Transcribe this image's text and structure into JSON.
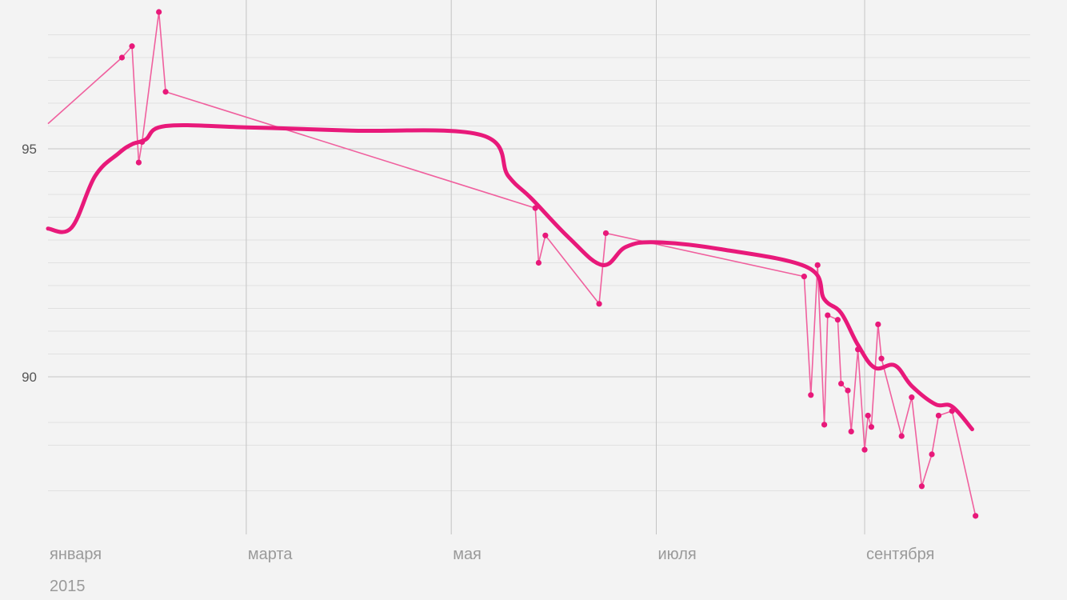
{
  "chart_data": {
    "type": "line",
    "x_axis": {
      "kind": "date",
      "range": [
        "2015-01-01",
        "2015-10-07"
      ],
      "ticks": [
        {
          "date": "2015-01-01",
          "label": "января"
        },
        {
          "date": "2015-03-01",
          "label": "марта"
        },
        {
          "date": "2015-05-01",
          "label": "мая"
        },
        {
          "date": "2015-07-01",
          "label": "июля"
        },
        {
          "date": "2015-09-01",
          "label": "сентября"
        }
      ],
      "year_label": "2015"
    },
    "y_axis": {
      "range": [
        87,
        98.3
      ],
      "labeled_ticks": [
        90,
        95
      ],
      "minor_gridlines": [
        87.5,
        88.5,
        89,
        90.5,
        91,
        91.5,
        92,
        92.5,
        93,
        93.5,
        94,
        94.5,
        95.5,
        96,
        96.5,
        97,
        97.5
      ]
    },
    "grid": true,
    "colors": {
      "series": "#e8197a",
      "raw_line": "#f0609e",
      "grid_major": "#c4c4c4",
      "grid_minor": "#e0e0e0",
      "background": "#f3f3f3"
    },
    "series": [
      {
        "kind": "raw",
        "points": [
          [
            "2015-01-01",
            95.55
          ],
          [
            "2015-01-23",
            97.0
          ],
          [
            "2015-01-26",
            97.25
          ],
          [
            "2015-01-28",
            94.7
          ],
          [
            "2015-01-29",
            95.15
          ],
          [
            "2015-02-03",
            98.0
          ],
          [
            "2015-02-05",
            96.25
          ],
          [
            "2015-05-26",
            93.7
          ],
          [
            "2015-05-27",
            92.5
          ],
          [
            "2015-05-29",
            93.1
          ],
          [
            "2015-06-14",
            91.6
          ],
          [
            "2015-06-16",
            93.15
          ],
          [
            "2015-08-14",
            92.2
          ],
          [
            "2015-08-16",
            89.6
          ],
          [
            "2015-08-18",
            92.45
          ],
          [
            "2015-08-20",
            88.95
          ],
          [
            "2015-08-21",
            91.35
          ],
          [
            "2015-08-24",
            91.25
          ],
          [
            "2015-08-25",
            89.85
          ],
          [
            "2015-08-27",
            89.7
          ],
          [
            "2015-08-28",
            88.8
          ],
          [
            "2015-08-30",
            90.6
          ],
          [
            "2015-09-01",
            88.4
          ],
          [
            "2015-09-02",
            89.15
          ],
          [
            "2015-09-03",
            88.9
          ],
          [
            "2015-09-05",
            91.15
          ],
          [
            "2015-09-06",
            90.4
          ],
          [
            "2015-09-12",
            88.7
          ],
          [
            "2015-09-15",
            89.55
          ],
          [
            "2015-09-18",
            87.6
          ],
          [
            "2015-09-21",
            88.3
          ],
          [
            "2015-09-23",
            89.15
          ],
          [
            "2015-09-27",
            89.25
          ],
          [
            "2015-10-04",
            86.95
          ]
        ]
      },
      {
        "kind": "smoothed",
        "points": [
          [
            "2015-01-01",
            93.25
          ],
          [
            "2015-01-08",
            93.27
          ],
          [
            "2015-01-15",
            94.4
          ],
          [
            "2015-01-22",
            94.9
          ],
          [
            "2015-01-26",
            95.1
          ],
          [
            "2015-01-30",
            95.2
          ],
          [
            "2015-02-05",
            95.5
          ],
          [
            "2015-03-01",
            95.47
          ],
          [
            "2015-04-01",
            95.4
          ],
          [
            "2015-05-10",
            95.3
          ],
          [
            "2015-05-18",
            94.4
          ],
          [
            "2015-05-25",
            93.9
          ],
          [
            "2015-06-05",
            93.05
          ],
          [
            "2015-06-15",
            92.45
          ],
          [
            "2015-06-22",
            92.85
          ],
          [
            "2015-07-01",
            92.95
          ],
          [
            "2015-07-20",
            92.8
          ],
          [
            "2015-08-15",
            92.4
          ],
          [
            "2015-08-20",
            91.7
          ],
          [
            "2015-08-25",
            91.4
          ],
          [
            "2015-08-30",
            90.7
          ],
          [
            "2015-09-04",
            90.2
          ],
          [
            "2015-09-10",
            90.25
          ],
          [
            "2015-09-15",
            89.8
          ],
          [
            "2015-09-22",
            89.4
          ],
          [
            "2015-09-27",
            89.35
          ],
          [
            "2015-10-03",
            88.85
          ]
        ]
      }
    ]
  }
}
